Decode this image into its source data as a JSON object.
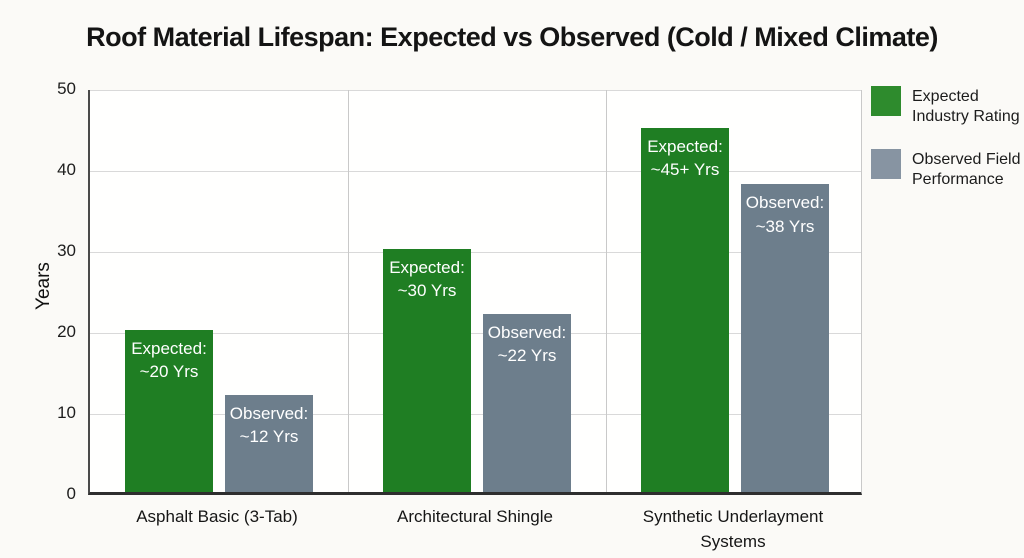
{
  "chart_data": {
    "type": "bar",
    "title": "Roof Material Lifespan: Expected vs Observed (Cold / Mixed Climate)",
    "xlabel": "",
    "ylabel": "Years",
    "ylim": [
      0,
      50
    ],
    "yticks": [
      0,
      10,
      20,
      30,
      40,
      50
    ],
    "grid": true,
    "legend_position": "right",
    "categories": [
      "Asphalt Basic (3-Tab)",
      "Architectural Shingle",
      "Synthetic Underlayment Systems"
    ],
    "series": [
      {
        "name": "Expected Industry Rating",
        "color": "#1f7e23",
        "legend_swatch_color": "#2e8b2d",
        "values": [
          20,
          30,
          45
        ],
        "bar_labels": [
          [
            "Expected:",
            "~20 Yrs"
          ],
          [
            "Expected:",
            "~30 Yrs"
          ],
          [
            "Expected:",
            "~45+ Yrs"
          ]
        ]
      },
      {
        "name": "Observed Field Performance",
        "color": "#6d7e8c",
        "legend_swatch_color": "#8794a2",
        "values": [
          12,
          22,
          38
        ],
        "bar_labels": [
          [
            "Observed:",
            "~12 Yrs"
          ],
          [
            "Observed:",
            "~22 Yrs"
          ],
          [
            "Observed:",
            "~38 Yrs"
          ]
        ]
      }
    ],
    "bar_label_color": "#ffffff",
    "gridline_color": "#d9d9d9",
    "separator_color": "#c9c9c9"
  }
}
